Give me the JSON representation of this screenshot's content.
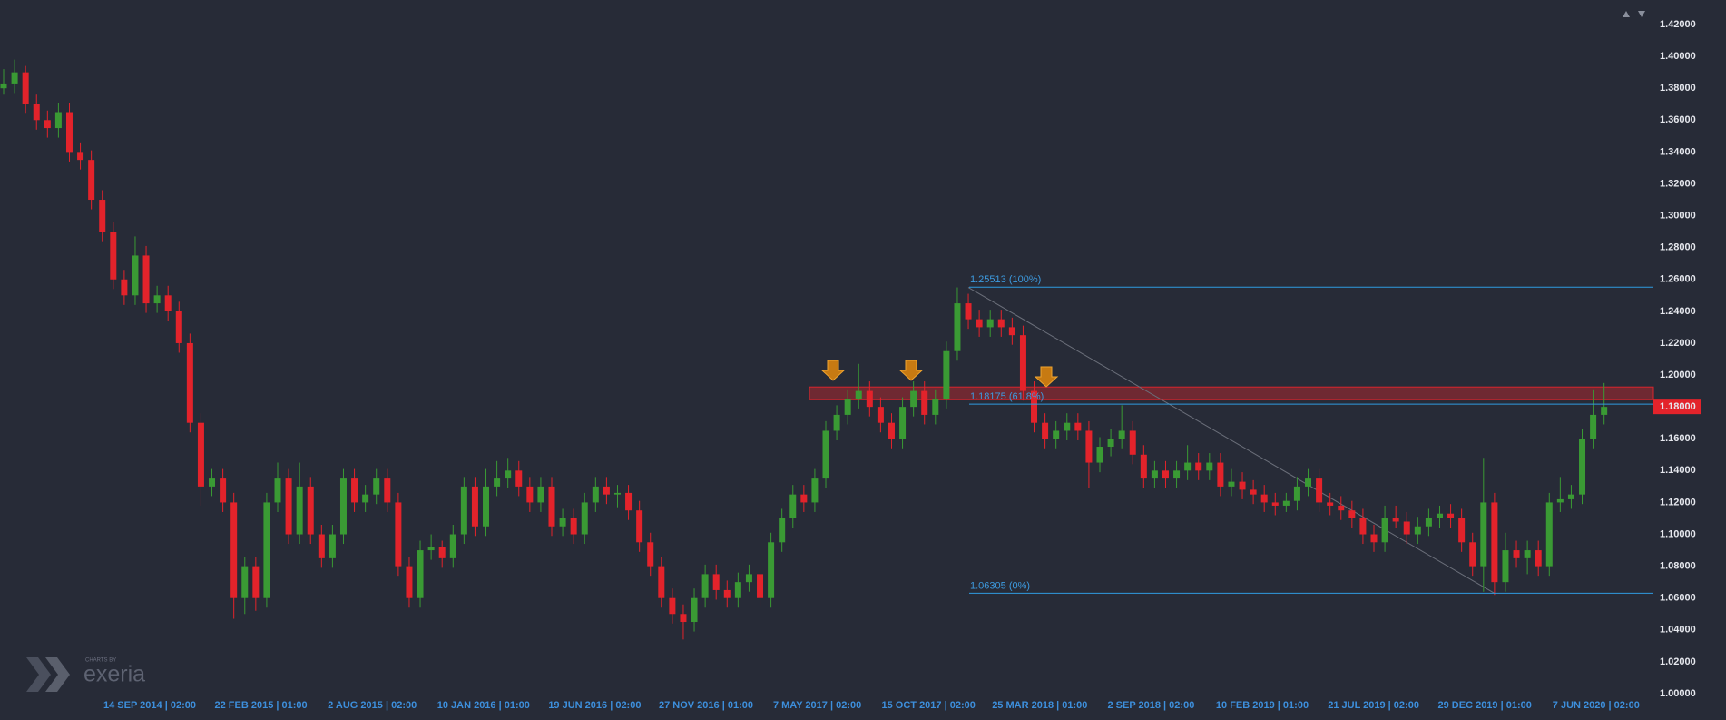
{
  "chart_data": {
    "type": "candlestick",
    "up_color": "#3a9a34",
    "down_color": "#e3232b",
    "ylim": [
      1.0,
      1.42
    ],
    "yticks": [
      {
        "value": 1.42,
        "label": "1.42000"
      },
      {
        "value": 1.4,
        "label": "1.40000"
      },
      {
        "value": 1.38,
        "label": "1.38000"
      },
      {
        "value": 1.36,
        "label": "1.36000"
      },
      {
        "value": 1.34,
        "label": "1.34000"
      },
      {
        "value": 1.32,
        "label": "1.32000"
      },
      {
        "value": 1.3,
        "label": "1.30000"
      },
      {
        "value": 1.28,
        "label": "1.28000"
      },
      {
        "value": 1.26,
        "label": "1.26000"
      },
      {
        "value": 1.24,
        "label": "1.24000"
      },
      {
        "value": 1.22,
        "label": "1.22000"
      },
      {
        "value": 1.2,
        "label": "1.20000"
      },
      {
        "value": 1.16,
        "label": "1.16000"
      },
      {
        "value": 1.14,
        "label": "1.14000"
      },
      {
        "value": 1.12,
        "label": "1.12000"
      },
      {
        "value": 1.1,
        "label": "1.10000"
      },
      {
        "value": 1.08,
        "label": "1.08000"
      },
      {
        "value": 1.06,
        "label": "1.06000"
      },
      {
        "value": 1.04,
        "label": "1.04000"
      },
      {
        "value": 1.02,
        "label": "1.02000"
      },
      {
        "value": 1.0,
        "label": "1.00000"
      }
    ],
    "x_labels": [
      "14 SEP 2014 | 02:00",
      "22 FEB 2015 | 01:00",
      "2 AUG 2015 | 02:00",
      "10 JAN 2016 | 01:00",
      "19 JUN 2016 | 02:00",
      "27 NOV 2016 | 01:00",
      "7 MAY 2017 | 02:00",
      "15 OCT 2017 | 02:00",
      "25 MAR 2018 | 01:00",
      "2 SEP 2018 | 02:00",
      "10 FEB 2019 | 01:00",
      "21 JUL 2019 | 02:00",
      "29 DEC 2019 | 01:00",
      "7 JUN 2020 | 02:00"
    ],
    "current_price": {
      "value": 1.18,
      "label": "1.18000",
      "color": "#e3232b"
    },
    "fib_levels": [
      {
        "value": 1.25513,
        "label": "1.25513 (100%)"
      },
      {
        "value": 1.18175,
        "label": "1.18175 (61.8%)"
      },
      {
        "value": 1.06305,
        "label": "1.06305 (0%)"
      }
    ],
    "fib_color": "#2f9be0",
    "zone": [
      1.1845,
      1.1925
    ],
    "trendline": [
      1.255,
      1.063
    ],
    "ohlc": [
      [
        1.38,
        1.392,
        1.376,
        1.383
      ],
      [
        1.383,
        1.398,
        1.377,
        1.39
      ],
      [
        1.39,
        1.394,
        1.364,
        1.37
      ],
      [
        1.37,
        1.376,
        1.354,
        1.36
      ],
      [
        1.36,
        1.366,
        1.349,
        1.355
      ],
      [
        1.355,
        1.371,
        1.349,
        1.365
      ],
      [
        1.365,
        1.371,
        1.334,
        1.34
      ],
      [
        1.34,
        1.346,
        1.329,
        1.335
      ],
      [
        1.335,
        1.341,
        1.304,
        1.31
      ],
      [
        1.31,
        1.316,
        1.284,
        1.29
      ],
      [
        1.29,
        1.296,
        1.254,
        1.26
      ],
      [
        1.26,
        1.266,
        1.244,
        1.25
      ],
      [
        1.25,
        1.287,
        1.244,
        1.275
      ],
      [
        1.275,
        1.281,
        1.239,
        1.245
      ],
      [
        1.245,
        1.256,
        1.239,
        1.25
      ],
      [
        1.25,
        1.256,
        1.234,
        1.24
      ],
      [
        1.24,
        1.246,
        1.214,
        1.22
      ],
      [
        1.22,
        1.226,
        1.164,
        1.17
      ],
      [
        1.17,
        1.176,
        1.118,
        1.13
      ],
      [
        1.13,
        1.141,
        1.124,
        1.135
      ],
      [
        1.135,
        1.141,
        1.114,
        1.12
      ],
      [
        1.12,
        1.126,
        1.047,
        1.06
      ],
      [
        1.06,
        1.086,
        1.05,
        1.08
      ],
      [
        1.08,
        1.086,
        1.052,
        1.06
      ],
      [
        1.06,
        1.126,
        1.054,
        1.12
      ],
      [
        1.12,
        1.145,
        1.114,
        1.135
      ],
      [
        1.135,
        1.141,
        1.094,
        1.1
      ],
      [
        1.1,
        1.145,
        1.094,
        1.13
      ],
      [
        1.13,
        1.136,
        1.094,
        1.1
      ],
      [
        1.1,
        1.106,
        1.079,
        1.085
      ],
      [
        1.085,
        1.106,
        1.079,
        1.1
      ],
      [
        1.1,
        1.141,
        1.094,
        1.135
      ],
      [
        1.135,
        1.141,
        1.114,
        1.12
      ],
      [
        1.12,
        1.131,
        1.114,
        1.125
      ],
      [
        1.125,
        1.141,
        1.119,
        1.135
      ],
      [
        1.135,
        1.141,
        1.114,
        1.12
      ],
      [
        1.12,
        1.126,
        1.074,
        1.08
      ],
      [
        1.08,
        1.086,
        1.054,
        1.06
      ],
      [
        1.06,
        1.096,
        1.054,
        1.09
      ],
      [
        1.09,
        1.1,
        1.084,
        1.092
      ],
      [
        1.092,
        1.096,
        1.079,
        1.085
      ],
      [
        1.085,
        1.106,
        1.079,
        1.1
      ],
      [
        1.1,
        1.136,
        1.094,
        1.13
      ],
      [
        1.13,
        1.136,
        1.099,
        1.105
      ],
      [
        1.105,
        1.141,
        1.099,
        1.13
      ],
      [
        1.13,
        1.146,
        1.124,
        1.135
      ],
      [
        1.135,
        1.148,
        1.129,
        1.14
      ],
      [
        1.14,
        1.146,
        1.124,
        1.13
      ],
      [
        1.13,
        1.136,
        1.114,
        1.12
      ],
      [
        1.12,
        1.136,
        1.114,
        1.13
      ],
      [
        1.13,
        1.136,
        1.099,
        1.105
      ],
      [
        1.105,
        1.116,
        1.099,
        1.11
      ],
      [
        1.11,
        1.116,
        1.094,
        1.1
      ],
      [
        1.1,
        1.126,
        1.094,
        1.12
      ],
      [
        1.12,
        1.136,
        1.114,
        1.13
      ],
      [
        1.13,
        1.136,
        1.119,
        1.125
      ],
      [
        1.125,
        1.131,
        1.117,
        1.126
      ],
      [
        1.126,
        1.131,
        1.109,
        1.115
      ],
      [
        1.115,
        1.121,
        1.089,
        1.095
      ],
      [
        1.095,
        1.101,
        1.074,
        1.08
      ],
      [
        1.08,
        1.086,
        1.054,
        1.06
      ],
      [
        1.06,
        1.066,
        1.044,
        1.05
      ],
      [
        1.05,
        1.056,
        1.034,
        1.045
      ],
      [
        1.045,
        1.066,
        1.039,
        1.06
      ],
      [
        1.06,
        1.081,
        1.054,
        1.075
      ],
      [
        1.075,
        1.081,
        1.059,
        1.065
      ],
      [
        1.065,
        1.071,
        1.054,
        1.06
      ],
      [
        1.06,
        1.076,
        1.054,
        1.07
      ],
      [
        1.07,
        1.081,
        1.064,
        1.075
      ],
      [
        1.075,
        1.081,
        1.054,
        1.06
      ],
      [
        1.06,
        1.101,
        1.054,
        1.095
      ],
      [
        1.095,
        1.116,
        1.089,
        1.11
      ],
      [
        1.11,
        1.131,
        1.104,
        1.125
      ],
      [
        1.125,
        1.131,
        1.114,
        1.12
      ],
      [
        1.12,
        1.141,
        1.114,
        1.135
      ],
      [
        1.135,
        1.171,
        1.129,
        1.165
      ],
      [
        1.165,
        1.181,
        1.159,
        1.175
      ],
      [
        1.175,
        1.191,
        1.169,
        1.185
      ],
      [
        1.185,
        1.207,
        1.179,
        1.19
      ],
      [
        1.19,
        1.196,
        1.174,
        1.18
      ],
      [
        1.18,
        1.186,
        1.164,
        1.17
      ],
      [
        1.17,
        1.176,
        1.154,
        1.16
      ],
      [
        1.16,
        1.186,
        1.154,
        1.18
      ],
      [
        1.18,
        1.196,
        1.174,
        1.19
      ],
      [
        1.19,
        1.196,
        1.169,
        1.175
      ],
      [
        1.175,
        1.191,
        1.169,
        1.185
      ],
      [
        1.185,
        1.221,
        1.179,
        1.215
      ],
      [
        1.215,
        1.255,
        1.209,
        1.245
      ],
      [
        1.245,
        1.251,
        1.229,
        1.235
      ],
      [
        1.235,
        1.241,
        1.224,
        1.23
      ],
      [
        1.23,
        1.241,
        1.224,
        1.235
      ],
      [
        1.235,
        1.241,
        1.224,
        1.23
      ],
      [
        1.23,
        1.236,
        1.219,
        1.225
      ],
      [
        1.225,
        1.231,
        1.184,
        1.19
      ],
      [
        1.19,
        1.196,
        1.164,
        1.17
      ],
      [
        1.17,
        1.176,
        1.154,
        1.16
      ],
      [
        1.16,
        1.171,
        1.154,
        1.165
      ],
      [
        1.165,
        1.176,
        1.159,
        1.17
      ],
      [
        1.17,
        1.176,
        1.159,
        1.165
      ],
      [
        1.165,
        1.171,
        1.129,
        1.145
      ],
      [
        1.145,
        1.161,
        1.139,
        1.155
      ],
      [
        1.155,
        1.166,
        1.149,
        1.16
      ],
      [
        1.16,
        1.181,
        1.154,
        1.165
      ],
      [
        1.165,
        1.171,
        1.144,
        1.15
      ],
      [
        1.15,
        1.156,
        1.129,
        1.135
      ],
      [
        1.135,
        1.146,
        1.129,
        1.14
      ],
      [
        1.14,
        1.146,
        1.129,
        1.135
      ],
      [
        1.135,
        1.146,
        1.129,
        1.14
      ],
      [
        1.14,
        1.156,
        1.134,
        1.145
      ],
      [
        1.145,
        1.151,
        1.134,
        1.14
      ],
      [
        1.14,
        1.151,
        1.134,
        1.145
      ],
      [
        1.145,
        1.151,
        1.124,
        1.13
      ],
      [
        1.13,
        1.141,
        1.124,
        1.133
      ],
      [
        1.133,
        1.139,
        1.122,
        1.128
      ],
      [
        1.128,
        1.134,
        1.119,
        1.125
      ],
      [
        1.125,
        1.131,
        1.114,
        1.12
      ],
      [
        1.12,
        1.126,
        1.112,
        1.118
      ],
      [
        1.118,
        1.126,
        1.114,
        1.121
      ],
      [
        1.121,
        1.136,
        1.115,
        1.13
      ],
      [
        1.13,
        1.141,
        1.124,
        1.135
      ],
      [
        1.135,
        1.141,
        1.114,
        1.12
      ],
      [
        1.12,
        1.126,
        1.112,
        1.118
      ],
      [
        1.118,
        1.124,
        1.109,
        1.115
      ],
      [
        1.115,
        1.121,
        1.104,
        1.11
      ],
      [
        1.11,
        1.116,
        1.094,
        1.1
      ],
      [
        1.1,
        1.106,
        1.089,
        1.095
      ],
      [
        1.095,
        1.118,
        1.089,
        1.11
      ],
      [
        1.11,
        1.118,
        1.104,
        1.108
      ],
      [
        1.108,
        1.114,
        1.094,
        1.1
      ],
      [
        1.1,
        1.111,
        1.094,
        1.105
      ],
      [
        1.105,
        1.116,
        1.099,
        1.11
      ],
      [
        1.11,
        1.118,
        1.104,
        1.113
      ],
      [
        1.113,
        1.119,
        1.104,
        1.11
      ],
      [
        1.11,
        1.116,
        1.089,
        1.095
      ],
      [
        1.095,
        1.101,
        1.074,
        1.08
      ],
      [
        1.08,
        1.148,
        1.064,
        1.12
      ],
      [
        1.12,
        1.126,
        1.062,
        1.07
      ],
      [
        1.07,
        1.101,
        1.064,
        1.09
      ],
      [
        1.09,
        1.096,
        1.079,
        1.085
      ],
      [
        1.085,
        1.096,
        1.075,
        1.09
      ],
      [
        1.09,
        1.096,
        1.074,
        1.08
      ],
      [
        1.08,
        1.126,
        1.074,
        1.12
      ],
      [
        1.12,
        1.136,
        1.114,
        1.122
      ],
      [
        1.122,
        1.131,
        1.116,
        1.125
      ],
      [
        1.125,
        1.166,
        1.119,
        1.16
      ],
      [
        1.16,
        1.191,
        1.154,
        1.175
      ],
      [
        1.175,
        1.195,
        1.169,
        1.18
      ]
    ]
  },
  "branding": {
    "caption": "CHARTS BY",
    "name": "exeria"
  }
}
